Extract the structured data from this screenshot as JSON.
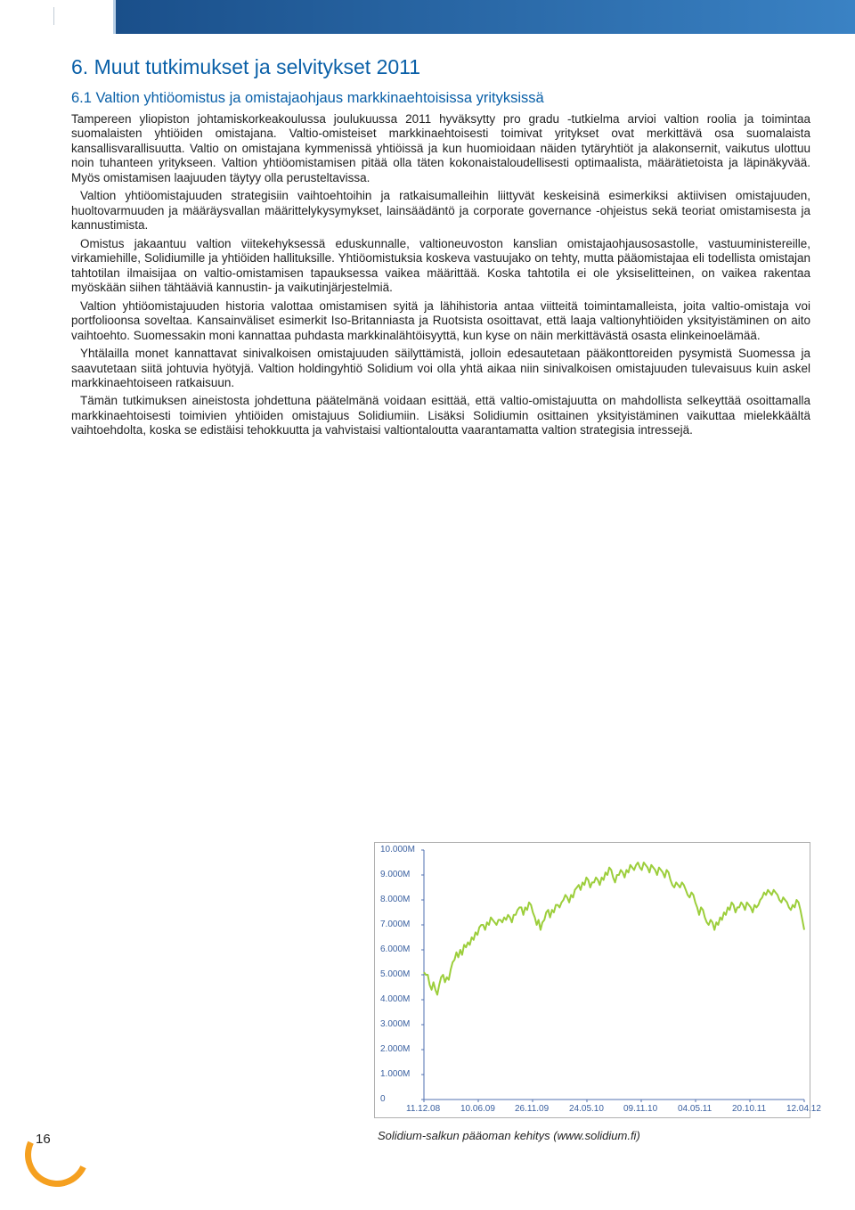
{
  "page_number": "16",
  "heading": "6. Muut tutkimukset ja selvitykset 2011",
  "subheading": "6.1 Valtion yhtiöomistus ja omistajaohjaus markkinaehtoisissa yrityksissä",
  "paragraphs": [
    "Tampereen yliopiston johtamiskorkeakoulussa joulukuussa 2011 hyväksytty pro gradu -tutkielma arvioi valtion roolia ja toimintaa suomalaisten yhtiöiden omistajana. Valtio-omisteiset markkinaehtoisesti toimivat yritykset ovat merkittävä osa suomalaista kansallisvarallisuutta. Valtio on omistajana kymmenissä yhtiöissä ja kun huomioidaan näiden tytäryhtiöt ja alakonsernit, vaikutus ulottuu noin tuhanteen yritykseen. Valtion yhtiöomistamisen pitää olla täten kokonaistaloudellisesti optimaalista, määrätietoista ja läpinäkyvää. Myös omistamisen laajuuden täytyy olla perusteltavissa.",
    "Valtion yhtiöomistajuuden strategisiin vaihtoehtoihin ja ratkaisumalleihin liittyvät keskeisinä esimerkiksi aktiivisen omistajuuden, huoltovarmuuden ja määräysvallan määrittelykysymykset, lainsäädäntö ja corporate governance -ohjeistus sekä teoriat omistamisesta ja kannustimista.",
    "Omistus jakaantuu valtion viitekehyksessä eduskunnalle, valtioneuvoston kanslian omistajaohjausosastolle, vastuuministereille, virkamiehille, Solidiumille ja yhtiöiden hallituksille. Yhtiöomistuksia koskeva vastuujako on tehty, mutta pääomistajaa eli todellista omistajan tahtotilan ilmaisijaa on valtio-omistamisen tapauksessa vaikea määrittää. Koska tahtotila ei ole yksiselitteinen, on vaikea rakentaa myöskään siihen tähtääviä kannustin- ja vaikutinjärjestelmiä.",
    "Valtion yhtiöomistajuuden historia valottaa omistamisen syitä ja lähihistoria antaa viitteitä toimintamalleista, joita valtio-omistaja voi portfolioonsa soveltaa. Kansainväliset esimerkit Iso-Britanniasta ja Ruotsista osoittavat, että laaja valtionyhtiöiden yksityistäminen on aito vaihtoehto. Suomessakin moni kannattaa puhdasta markkinalähtöisyyttä, kun kyse on näin merkittävästä osasta elinkeinoelämää.",
    "Yhtälailla monet kannattavat sinivalkoisen omistajuuden säilyttämistä, jolloin edesautetaan pääkonttoreiden pysymistä Suomessa ja saavutetaan siitä johtuvia hyötyjä. Valtion holdingyhtiö Solidium voi olla yhtä aikaa niin sinivalkoisen omistajuuden tulevaisuus kuin askel markkinaehtoiseen ratkaisuun.",
    "Tämän tutkimuksen aineistosta johdettuna päätelmänä voidaan esittää, että valtio-omistajuutta on mahdollista selkeyttää osoittamalla markkinaehtoisesti toimivien yhtiöiden omistajuus Solidiumiin. Lisäksi Solidiumin osittainen yksityistäminen vaikuttaa mielekkäältä vaihtoehdolta, koska se edistäisi tehokkuutta ja vahvistaisi valtiontaloutta vaarantamatta valtion strategisia intressejä."
  ],
  "chart": {
    "type": "line",
    "caption": "Solidium-salkun pääoman kehitys (www.solidium.fi)",
    "ylim": [
      0,
      10000
    ],
    "ytick_step": 1000,
    "ytick_labels": [
      "0",
      "1.000M",
      "2.000M",
      "3.000M",
      "4.000M",
      "5.000M",
      "6.000M",
      "7.000M",
      "8.000M",
      "9.000M",
      "10.000M"
    ],
    "xtick_labels": [
      "11.12.08",
      "10.06.09",
      "26.11.09",
      "24.05.10",
      "09.11.10",
      "04.05.11",
      "20.10.11",
      "12.04.12"
    ],
    "x_count": 200,
    "line_color": "#9cce3b",
    "line_width": 2,
    "axis_color": "#5070b0",
    "grid_color": "#d0d8e8",
    "background_color": "#ffffff",
    "tick_font_color": "#3a60a0",
    "tick_font_size": 10,
    "values": [
      5100,
      5000,
      5000,
      4600,
      4400,
      4700,
      4400,
      4200,
      4600,
      4900,
      5000,
      4700,
      4900,
      4800,
      5200,
      5500,
      5600,
      5900,
      5700,
      6000,
      5800,
      6200,
      6100,
      6300,
      6200,
      6500,
      6400,
      6700,
      6600,
      6900,
      7000,
      7000,
      6800,
      7100,
      7000,
      7300,
      7200,
      7100,
      7000,
      7200,
      7200,
      7100,
      7300,
      7200,
      7400,
      7300,
      7100,
      7400,
      7400,
      7600,
      7700,
      7700,
      7400,
      7700,
      7600,
      7900,
      7800,
      7500,
      7300,
      7000,
      7200,
      6800,
      7100,
      7200,
      7500,
      7600,
      7300,
      7600,
      7500,
      7800,
      7800,
      7700,
      7900,
      8000,
      8200,
      8100,
      7900,
      8200,
      8100,
      8400,
      8500,
      8600,
      8400,
      8700,
      8600,
      8900,
      8800,
      8500,
      8700,
      8700,
      8900,
      8800,
      8600,
      8900,
      8800,
      9100,
      9000,
      9300,
      9200,
      8900,
      8700,
      9000,
      9000,
      9200,
      9100,
      8900,
      9200,
      9100,
      9400,
      9300,
      9200,
      9400,
      9500,
      9300,
      9200,
      9500,
      9400,
      9300,
      9100,
      9400,
      9300,
      9200,
      9000,
      9300,
      9200,
      9100,
      8900,
      9200,
      9100,
      8800,
      8600,
      8500,
      8700,
      8600,
      8500,
      8700,
      8600,
      8400,
      8200,
      8100,
      8300,
      8200,
      7900,
      7700,
      7400,
      7700,
      7600,
      7300,
      7100,
      7000,
      7200,
      7100,
      6800,
      7100,
      7000,
      7300,
      7200,
      7500,
      7400,
      7700,
      7600,
      7900,
      7800,
      7500,
      7700,
      7700,
      7900,
      7800,
      7600,
      7900,
      7800,
      7700,
      7500,
      7800,
      7700,
      7800,
      8000,
      8100,
      8300,
      8200,
      8400,
      8300,
      8200,
      8400,
      8300,
      8200,
      8000,
      7900,
      8100,
      8000,
      7900,
      7700,
      7600,
      7800,
      7700,
      8000,
      7900,
      7600,
      7200,
      6800
    ]
  },
  "colors": {
    "heading": "#0a60a8",
    "body": "#222222",
    "top_bar_start": "#1a4f8a",
    "top_bar_end": "#3a82c4",
    "accent_orange": "#f5a020"
  }
}
